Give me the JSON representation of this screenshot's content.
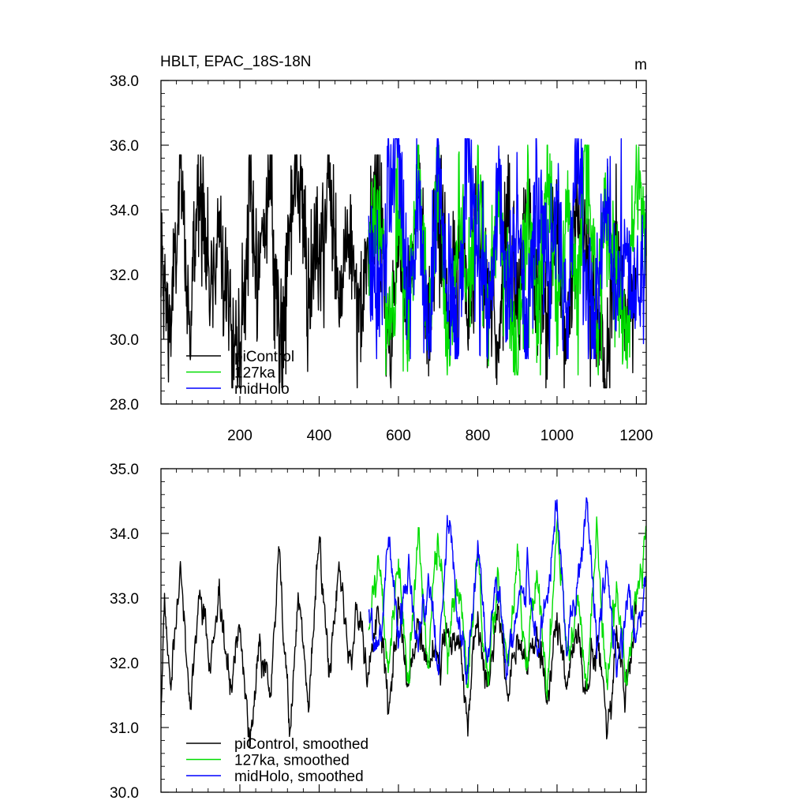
{
  "figure": {
    "title": "HBLT, EPAC_18S-18N",
    "units": "m"
  },
  "chart_data": [
    {
      "type": "line",
      "title": "HBLT, EPAC_18S-18N",
      "units_label": "m",
      "xlabel": "",
      "ylabel": "",
      "xlim": [
        1,
        1225
      ],
      "ylim": [
        28.0,
        38.0
      ],
      "x_ticks": [
        200,
        400,
        600,
        800,
        1000,
        1200
      ],
      "x_tick_labels": [
        "200",
        "400",
        "600",
        "800",
        "1000",
        "1200"
      ],
      "y_ticks": [
        28.0,
        30.0,
        32.0,
        34.0,
        36.0,
        38.0
      ],
      "y_tick_labels": [
        "28.0",
        "30.0",
        "32.0",
        "34.0",
        "36.0",
        "38.0"
      ],
      "grid": false,
      "legend_position": "bottom-left",
      "legend": [
        "piControl",
        "127ka",
        "midHolo"
      ],
      "series": [
        {
          "name": "piControl",
          "color": "#000000",
          "x_range": [
            1,
            1200
          ],
          "x": [
            1,
            25,
            50,
            75,
            100,
            125,
            150,
            175,
            200,
            225,
            250,
            275,
            300,
            325,
            350,
            375,
            400,
            425,
            450,
            475,
            500,
            525,
            550,
            575,
            600,
            625,
            650,
            675,
            700,
            725,
            750,
            775,
            800,
            825,
            850,
            875,
            900,
            925,
            950,
            975,
            1000,
            1025,
            1050,
            1075,
            1100,
            1125,
            1150,
            1175,
            1200
          ],
          "y": [
            32.0,
            30.4,
            34.8,
            30.3,
            35.6,
            31.2,
            33.9,
            30.6,
            29.6,
            34.3,
            32.1,
            35.1,
            29.9,
            33.4,
            35.0,
            30.9,
            32.7,
            34.8,
            31.0,
            33.8,
            30.0,
            32.6,
            35.1,
            29.3,
            33.0,
            31.4,
            35.2,
            29.9,
            34.4,
            31.0,
            32.8,
            30.5,
            34.5,
            31.7,
            29.9,
            33.6,
            30.8,
            34.2,
            31.9,
            30.4,
            33.5,
            29.5,
            34.8,
            32.0,
            30.9,
            28.5,
            33.4,
            30.2,
            32.6
          ],
          "range": [
            28.5,
            35.7
          ]
        },
        {
          "name": "127ka",
          "color": "#00dd00",
          "x_range": [
            525,
            1225
          ],
          "x": [
            525,
            550,
            575,
            600,
            625,
            650,
            675,
            700,
            725,
            750,
            775,
            800,
            825,
            850,
            875,
            900,
            925,
            950,
            975,
            1000,
            1025,
            1050,
            1075,
            1100,
            1125,
            1150,
            1175,
            1200,
            1225
          ],
          "y": [
            32.2,
            34.5,
            29.4,
            33.9,
            31.0,
            35.3,
            30.1,
            34.8,
            29.7,
            33.5,
            31.1,
            35.0,
            30.8,
            34.0,
            32.1,
            28.9,
            34.6,
            31.2,
            35.1,
            30.4,
            33.8,
            31.5,
            36.0,
            30.2,
            34.1,
            31.9,
            30.0,
            35.3,
            33.0
          ],
          "range": [
            28.9,
            36.0
          ]
        },
        {
          "name": "midHolo",
          "color": "#0000ff",
          "x_range": [
            525,
            1225
          ],
          "x": [
            525,
            550,
            575,
            600,
            625,
            650,
            675,
            700,
            725,
            750,
            775,
            800,
            825,
            850,
            875,
            900,
            925,
            950,
            975,
            1000,
            1025,
            1050,
            1075,
            1100,
            1125,
            1150,
            1175,
            1200,
            1225
          ],
          "y": [
            33.1,
            30.6,
            34.9,
            36.2,
            31.0,
            34.3,
            30.2,
            35.2,
            31.7,
            29.9,
            36.2,
            32.4,
            30.5,
            34.6,
            31.3,
            33.8,
            30.0,
            35.0,
            31.6,
            34.2,
            30.4,
            35.8,
            32.0,
            30.9,
            34.7,
            31.2,
            33.5,
            30.6,
            32.9
          ],
          "range": [
            29.4,
            36.2
          ]
        }
      ]
    },
    {
      "type": "line",
      "title": "",
      "xlabel": "",
      "ylabel": "",
      "xlim": [
        1,
        1225
      ],
      "ylim": [
        30.0,
        35.0
      ],
      "x_ticks": [
        200,
        400,
        600,
        800,
        1000,
        1200
      ],
      "y_ticks": [
        30.0,
        31.0,
        32.0,
        33.0,
        34.0,
        35.0
      ],
      "y_tick_labels": [
        "30.0",
        "31.0",
        "32.0",
        "33.0",
        "34.0",
        "35.0"
      ],
      "grid": false,
      "legend_position": "bottom-left",
      "legend": [
        "piControl, smoothed",
        "127ka, smoothed",
        "midHolo, smoothed"
      ],
      "series": [
        {
          "name": "piControl, smoothed",
          "color": "#000000",
          "x_range": [
            1,
            1200
          ],
          "x": [
            1,
            10,
            25,
            50,
            75,
            100,
            125,
            150,
            175,
            200,
            225,
            250,
            275,
            300,
            325,
            350,
            375,
            400,
            425,
            450,
            475,
            500,
            525,
            550,
            575,
            600,
            625,
            650,
            675,
            700,
            725,
            750,
            775,
            800,
            825,
            850,
            875,
            900,
            925,
            950,
            975,
            1000,
            1025,
            1050,
            1075,
            1100,
            1125,
            1150,
            1175,
            1200
          ],
          "y": [
            31.2,
            33.1,
            31.6,
            33.5,
            31.3,
            33.2,
            31.9,
            32.9,
            31.6,
            32.5,
            30.8,
            32.2,
            31.6,
            33.6,
            31.1,
            33.2,
            31.3,
            33.9,
            31.9,
            33.6,
            32.0,
            32.8,
            31.8,
            32.9,
            31.2,
            33.0,
            31.6,
            32.5,
            32.0,
            31.9,
            32.5,
            32.2,
            31.2,
            32.6,
            31.4,
            32.9,
            31.6,
            32.3,
            31.9,
            32.4,
            31.5,
            32.8,
            31.8,
            32.6,
            31.5,
            32.3,
            31.0,
            32.4,
            31.5,
            32.9
          ],
          "range": [
            30.7,
            33.95
          ]
        },
        {
          "name": "127ka, smoothed",
          "color": "#00dd00",
          "x_range": [
            525,
            1225
          ],
          "x": [
            525,
            550,
            575,
            600,
            625,
            650,
            675,
            700,
            725,
            750,
            775,
            800,
            825,
            850,
            875,
            900,
            925,
            950,
            975,
            1000,
            1025,
            1050,
            1075,
            1100,
            1125,
            1150,
            1175,
            1200,
            1225
          ],
          "y": [
            32.5,
            33.7,
            31.9,
            33.5,
            31.8,
            34.0,
            31.7,
            33.9,
            32.2,
            33.2,
            31.8,
            33.6,
            31.7,
            33.3,
            32.0,
            33.7,
            31.9,
            33.4,
            31.6,
            34.2,
            32.1,
            33.0,
            31.6,
            33.9,
            31.7,
            33.1,
            31.6,
            33.0,
            34.0
          ],
          "range": [
            31.4,
            34.3
          ]
        },
        {
          "name": "midHolo, smoothed",
          "color": "#0000ff",
          "x_range": [
            525,
            1225
          ],
          "x": [
            525,
            550,
            575,
            600,
            625,
            650,
            675,
            700,
            725,
            750,
            775,
            800,
            825,
            850,
            875,
            900,
            925,
            950,
            975,
            1000,
            1025,
            1050,
            1075,
            1100,
            1125,
            1150,
            1175,
            1200,
            1225
          ],
          "y": [
            32.9,
            32.1,
            33.9,
            32.3,
            33.5,
            32.2,
            33.3,
            32.0,
            34.3,
            32.6,
            31.7,
            33.8,
            32.2,
            33.2,
            31.9,
            32.9,
            33.5,
            32.1,
            33.0,
            34.4,
            32.2,
            33.2,
            34.55,
            32.3,
            33.6,
            32.0,
            33.0,
            32.4,
            33.2
          ],
          "range": [
            31.6,
            34.55
          ]
        }
      ]
    }
  ]
}
